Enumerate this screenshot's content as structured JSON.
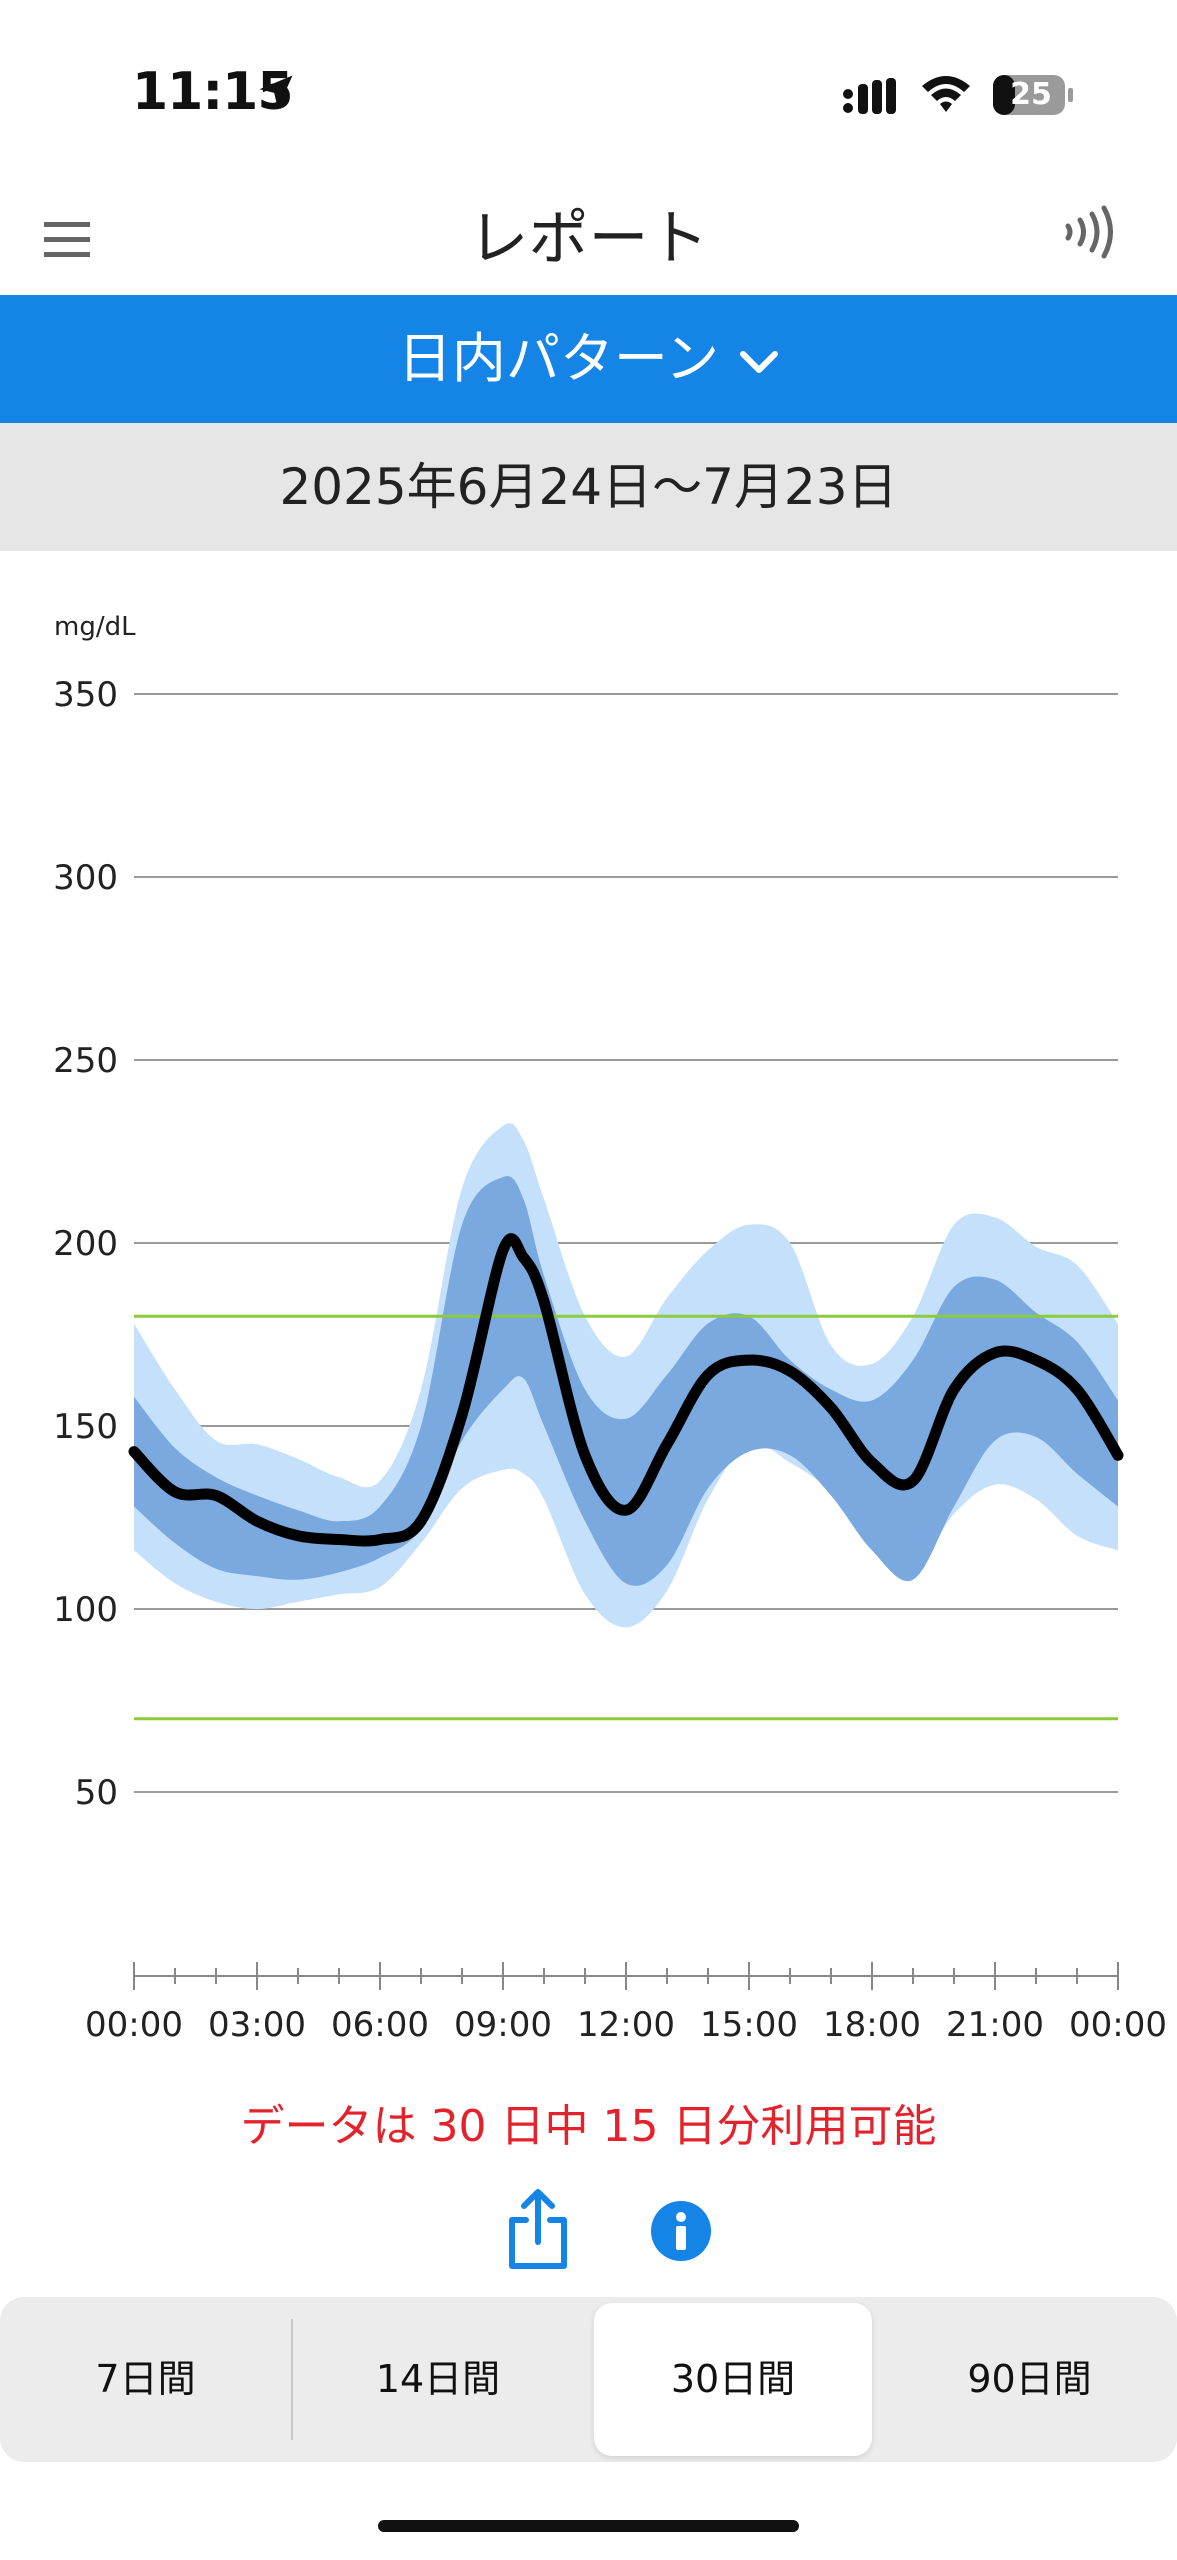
{
  "status_bar": {
    "time": "11:15",
    "battery": "25"
  },
  "nav": {
    "title": "レポート"
  },
  "selector": {
    "label": "日内パターン"
  },
  "date_range": "2025年6月24日〜7月23日",
  "notice": "データは 30 日中 15 日分利用可能",
  "segments": [
    {
      "label": "7日間",
      "active": false
    },
    {
      "label": "14日間",
      "active": false
    },
    {
      "label": "30日間",
      "active": true
    },
    {
      "label": "90日間",
      "active": false
    }
  ],
  "colors": {
    "accent": "#1485e6",
    "outer_band": "#c5e0fb",
    "inner_band": "#7aa9df",
    "median": "#000000",
    "target_line": "#8ccc3a",
    "notice": "#e4222b"
  },
  "chart_data": {
    "type": "area",
    "y_unit": "mg/dL",
    "ylim": [
      0,
      350
    ],
    "yticks": [
      350,
      300,
      250,
      200,
      150,
      100,
      50
    ],
    "x_tick_labels": [
      "00:00",
      "03:00",
      "06:00",
      "09:00",
      "12:00",
      "15:00",
      "18:00",
      "21:00",
      "00:00"
    ],
    "x_hours": [
      0,
      1,
      2,
      3,
      4,
      5,
      6,
      7,
      8,
      9,
      9.5,
      10,
      11,
      12,
      13,
      14,
      15,
      16,
      17,
      18,
      19,
      20,
      21,
      22,
      23,
      24
    ],
    "target_range": [
      70,
      180
    ],
    "series": [
      {
        "role": "p95",
        "values": [
          178,
          160,
          146,
          145,
          141,
          136,
          135,
          160,
          215,
          232,
          228,
          212,
          180,
          169,
          185,
          198,
          205,
          200,
          172,
          167,
          180,
          205,
          207,
          199,
          194,
          178
        ]
      },
      {
        "role": "p75",
        "values": [
          158,
          144,
          136,
          131,
          127,
          124,
          128,
          150,
          205,
          218,
          212,
          191,
          160,
          152,
          164,
          178,
          180,
          168,
          160,
          157,
          168,
          188,
          190,
          181,
          173,
          157
        ]
      },
      {
        "role": "median",
        "values": [
          143,
          132,
          131,
          124,
          120,
          119,
          119,
          124,
          153,
          198,
          196,
          184,
          142,
          127,
          145,
          164,
          168,
          165,
          155,
          140,
          135,
          160,
          170,
          168,
          160,
          142
        ]
      },
      {
        "role": "p25",
        "values": [
          128,
          118,
          111,
          109,
          108,
          110,
          114,
          122,
          146,
          160,
          163,
          150,
          124,
          107,
          112,
          133,
          143,
          142,
          131,
          116,
          108,
          128,
          146,
          147,
          137,
          128
        ]
      },
      {
        "role": "p5",
        "values": [
          116,
          107,
          102,
          100,
          102,
          104,
          106,
          118,
          133,
          138,
          137,
          130,
          104,
          95,
          105,
          130,
          145,
          140,
          132,
          118,
          110,
          126,
          134,
          130,
          120,
          116
        ]
      }
    ]
  }
}
